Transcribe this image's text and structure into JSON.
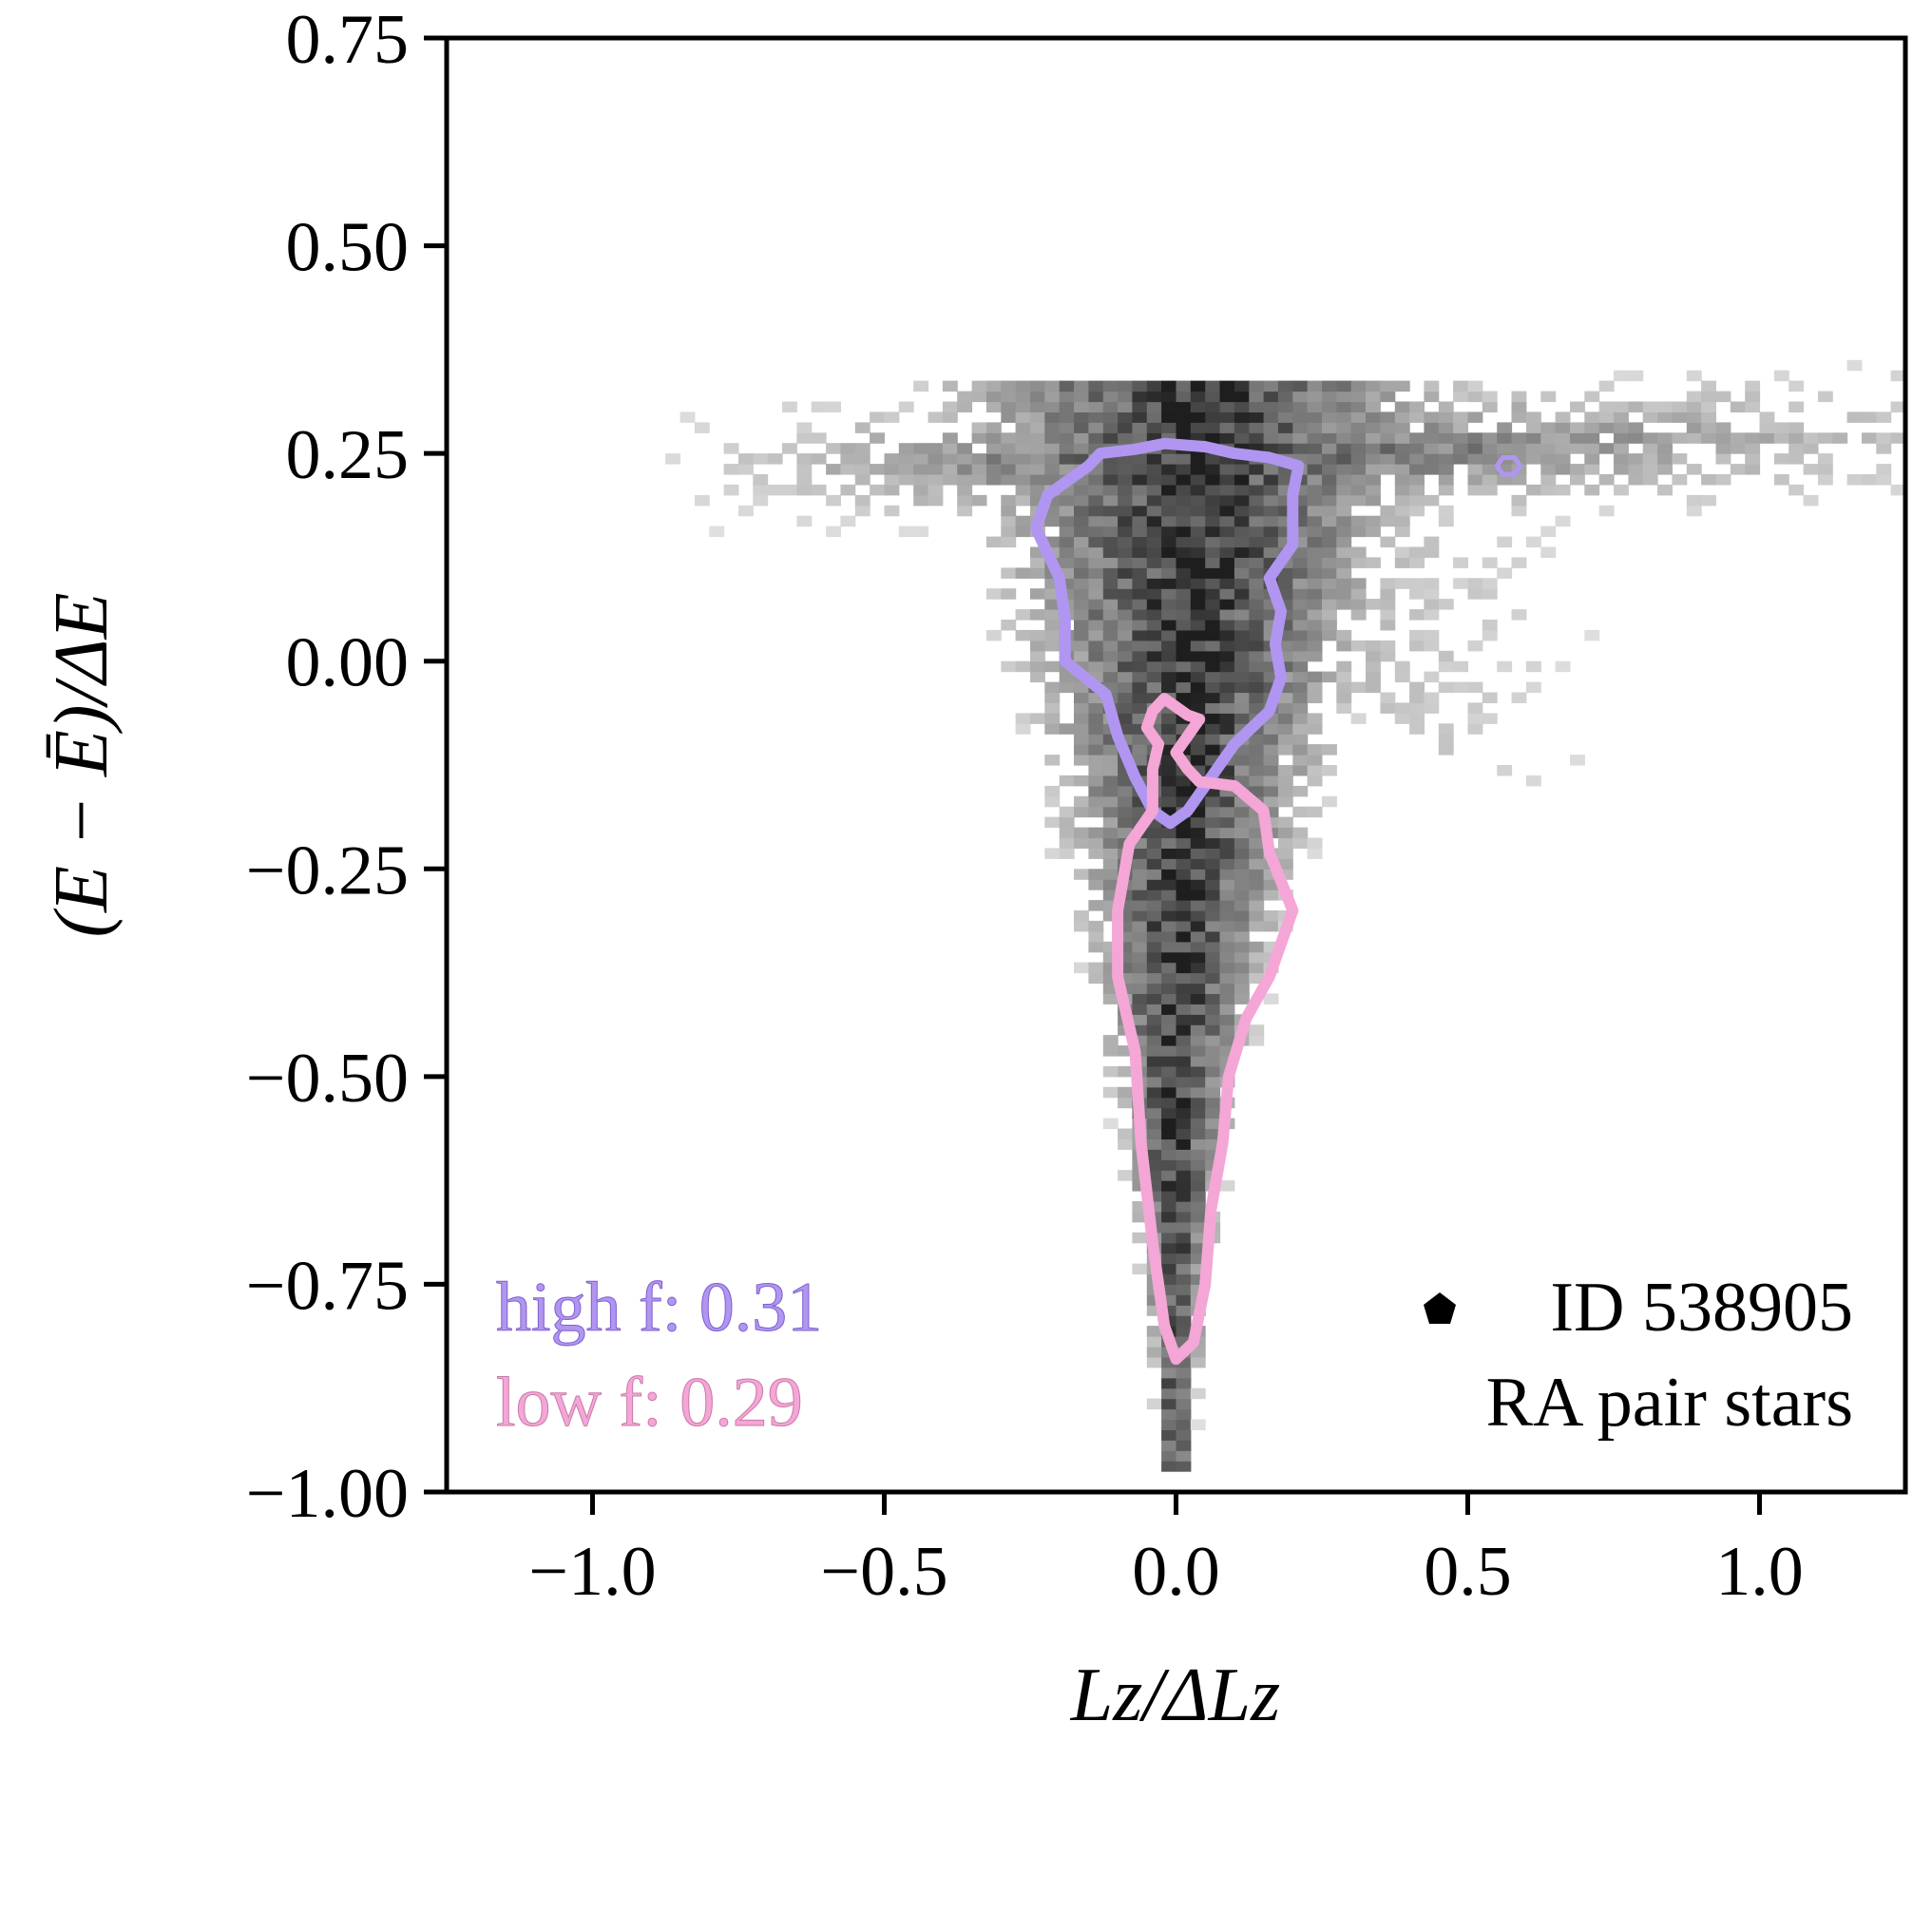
{
  "chart_data": {
    "type": "heatmap",
    "title": "",
    "xlabel": "Lz/ΔLz",
    "ylabel": "(E − Ē)/ΔE",
    "xlim": [
      -1.25,
      1.25
    ],
    "ylim": [
      -1.0,
      0.75
    ],
    "x_ticks": [
      -1.0,
      -0.5,
      0.0,
      0.5,
      1.0
    ],
    "x_tick_labels": [
      "−1.0",
      "−0.5",
      "0.0",
      "0.5",
      "1.0"
    ],
    "y_ticks": [
      0.75,
      0.5,
      0.25,
      0.0,
      -0.25,
      -0.5,
      -0.75,
      -1.0
    ],
    "y_tick_labels": [
      "0.75",
      "0.50",
      "0.25",
      "0.00",
      "−0.25",
      "−0.50",
      "−0.75",
      "−1.00"
    ],
    "grid": false,
    "heatmap_description": "2D histogram of stars (grayscale density), triangular shape: broad horizontal band near E≈0.25 spanning Lz −0.9 to 1.25, narrowing to a tail at Lz≈0 down to E≈−0.97",
    "contours": [
      {
        "name": "high f",
        "color": "#b096f0",
        "value_label": "0.31",
        "points": [
          [
            -0.24,
            0.16
          ],
          [
            -0.22,
            0.2
          ],
          [
            -0.15,
            0.235
          ],
          [
            -0.13,
            0.25
          ],
          [
            -0.07,
            0.255
          ],
          [
            -0.02,
            0.262
          ],
          [
            0.05,
            0.258
          ],
          [
            0.1,
            0.25
          ],
          [
            0.16,
            0.245
          ],
          [
            0.21,
            0.235
          ],
          [
            0.2,
            0.2
          ],
          [
            0.2,
            0.14
          ],
          [
            0.16,
            0.1
          ],
          [
            0.18,
            0.06
          ],
          [
            0.17,
            0.02
          ],
          [
            0.18,
            -0.02
          ],
          [
            0.16,
            -0.06
          ],
          [
            0.1,
            -0.1
          ],
          [
            0.06,
            -0.14
          ],
          [
            0.02,
            -0.18
          ],
          [
            -0.01,
            -0.195
          ],
          [
            -0.04,
            -0.18
          ],
          [
            -0.07,
            -0.14
          ],
          [
            -0.1,
            -0.09
          ],
          [
            -0.12,
            -0.04
          ],
          [
            -0.19,
            0.0
          ],
          [
            -0.19,
            0.05
          ],
          [
            -0.2,
            0.1
          ],
          [
            -0.22,
            0.13
          ],
          [
            -0.24,
            0.16
          ]
        ]
      },
      {
        "name": "high f small loop",
        "color": "#b096f0",
        "points": [
          [
            0.56,
            0.245
          ],
          [
            0.58,
            0.245
          ],
          [
            0.59,
            0.235
          ],
          [
            0.58,
            0.225
          ],
          [
            0.56,
            0.225
          ],
          [
            0.55,
            0.235
          ],
          [
            0.56,
            0.245
          ]
        ]
      },
      {
        "name": "low f",
        "color": "#f4a6d6",
        "value_label": "0.29",
        "points": [
          [
            -0.04,
            -0.06
          ],
          [
            -0.02,
            -0.045
          ],
          [
            0.02,
            -0.065
          ],
          [
            0.04,
            -0.07
          ],
          [
            0.02,
            -0.09
          ],
          [
            0.0,
            -0.11
          ],
          [
            0.02,
            -0.13
          ],
          [
            0.04,
            -0.145
          ],
          [
            0.1,
            -0.15
          ],
          [
            0.15,
            -0.18
          ],
          [
            0.16,
            -0.23
          ],
          [
            0.2,
            -0.3
          ],
          [
            0.16,
            -0.38
          ],
          [
            0.12,
            -0.43
          ],
          [
            0.09,
            -0.5
          ],
          [
            0.08,
            -0.58
          ],
          [
            0.06,
            -0.66
          ],
          [
            0.05,
            -0.75
          ],
          [
            0.03,
            -0.82
          ],
          [
            0.0,
            -0.84
          ],
          [
            -0.02,
            -0.8
          ],
          [
            -0.04,
            -0.7
          ],
          [
            -0.06,
            -0.58
          ],
          [
            -0.07,
            -0.47
          ],
          [
            -0.1,
            -0.38
          ],
          [
            -0.1,
            -0.3
          ],
          [
            -0.08,
            -0.22
          ],
          [
            -0.04,
            -0.18
          ],
          [
            -0.04,
            -0.13
          ],
          [
            -0.03,
            -0.1
          ],
          [
            -0.05,
            -0.08
          ],
          [
            -0.04,
            -0.06
          ]
        ]
      }
    ],
    "legend": {
      "placement": "bottom-left",
      "entries": [
        {
          "label": "high f: 0.31",
          "color": "#b096f0"
        },
        {
          "label": "low f: 0.29",
          "color": "#f4a6d6"
        }
      ]
    },
    "annotation": {
      "placement": "bottom-right",
      "marker": "pentagon",
      "lines": [
        "ID 538905",
        "RA pair stars"
      ]
    }
  }
}
